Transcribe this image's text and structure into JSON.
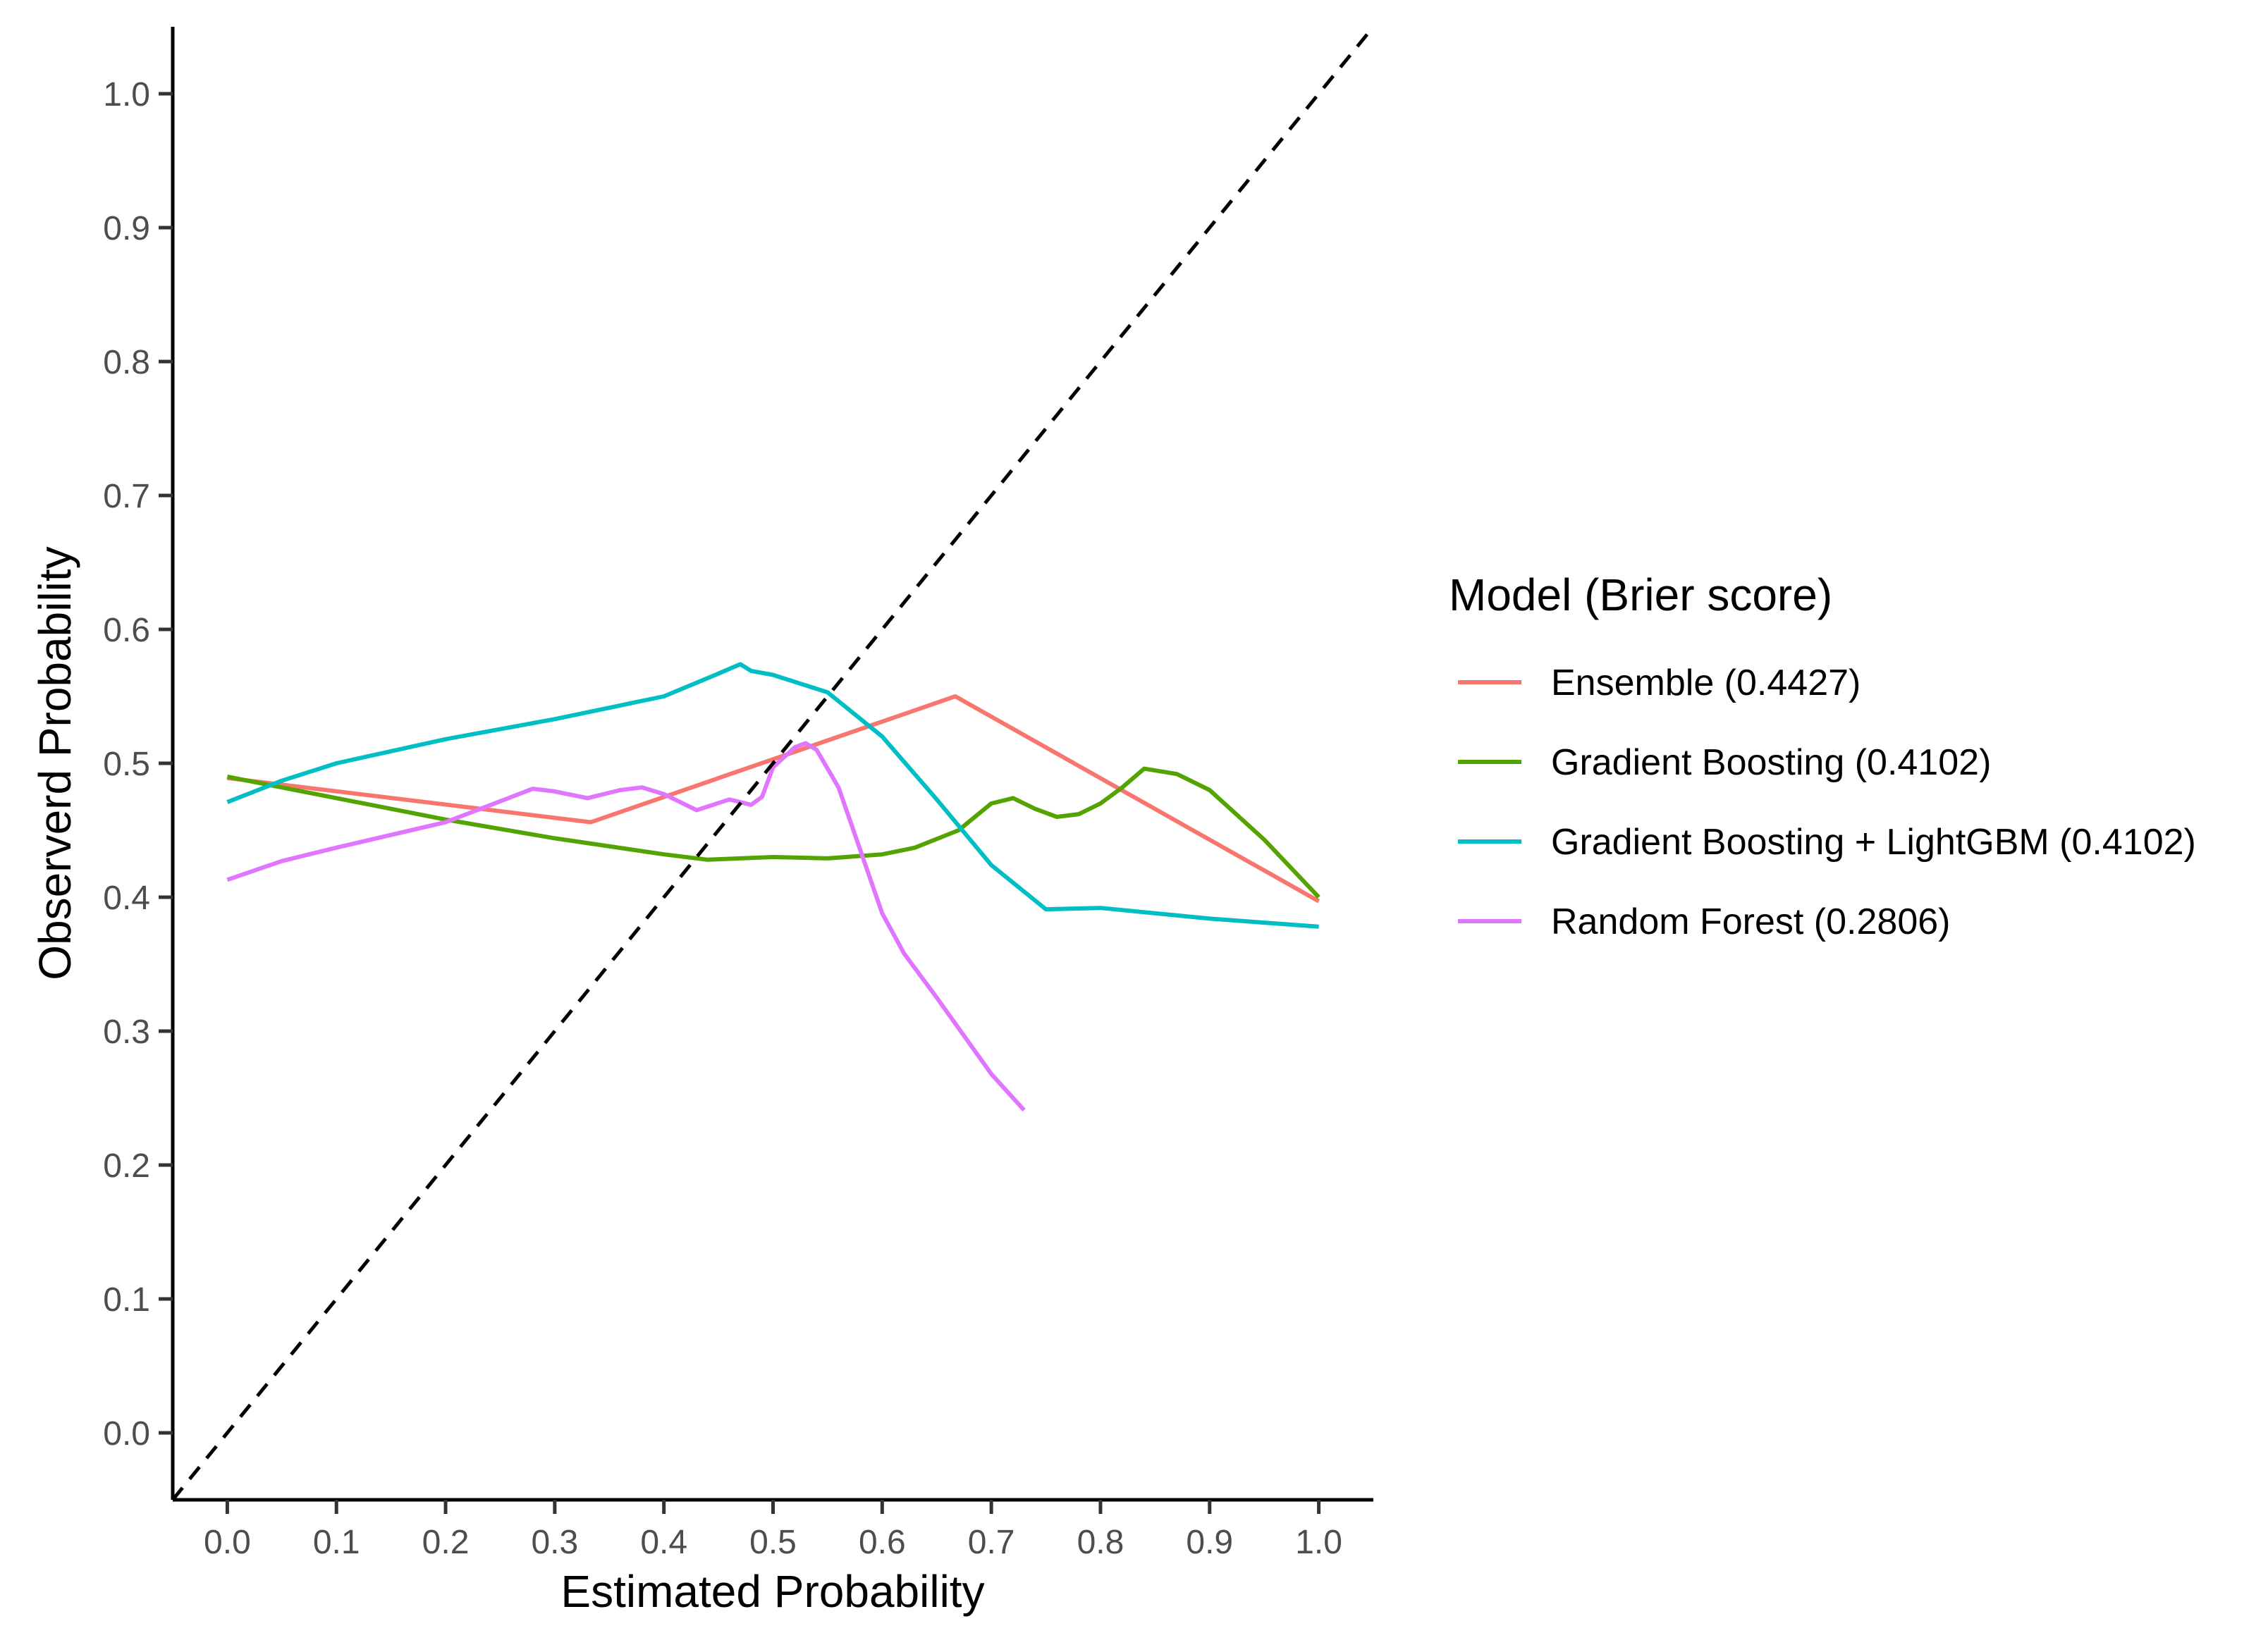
{
  "chart_data": {
    "type": "line",
    "title": "",
    "xlabel": "Estimated Probability",
    "ylabel": "Observerd Probability",
    "xlim": [
      -0.05,
      1.05
    ],
    "ylim": [
      -0.05,
      1.05
    ],
    "xticks": [
      0.0,
      0.1,
      0.2,
      0.3,
      0.4,
      0.5,
      0.6,
      0.7,
      0.8,
      0.9,
      1.0
    ],
    "yticks": [
      0.0,
      0.1,
      0.2,
      0.3,
      0.4,
      0.5,
      0.6,
      0.7,
      0.8,
      0.9,
      1.0
    ],
    "xtick_labels": [
      "0.0",
      "0.1",
      "0.2",
      "0.3",
      "0.4",
      "0.5",
      "0.6",
      "0.7",
      "0.8",
      "0.9",
      "1.0"
    ],
    "ytick_labels": [
      "0.0",
      "0.1",
      "0.2",
      "0.3",
      "0.4",
      "0.5",
      "0.6",
      "0.7",
      "0.8",
      "0.9",
      "1.0"
    ],
    "grid": false,
    "legend_title": "Model (Brier score)",
    "legend_position": "right",
    "reference_line": {
      "style": "dashed",
      "color": "#000000",
      "x": [
        -0.05,
        1.05
      ],
      "y": [
        -0.05,
        1.05
      ]
    },
    "series": [
      {
        "name": "Ensemble (0.4427)",
        "color": "#F8766D",
        "x": [
          0.0,
          0.333,
          0.667,
          1.0
        ],
        "y": [
          0.489,
          0.456,
          0.55,
          0.397
        ]
      },
      {
        "name": "Gradient Boosting (0.4102)",
        "color": "#53A400",
        "x": [
          0.0,
          0.1,
          0.2,
          0.3,
          0.4,
          0.44,
          0.5,
          0.55,
          0.6,
          0.63,
          0.67,
          0.7,
          0.72,
          0.74,
          0.76,
          0.78,
          0.8,
          0.82,
          0.84,
          0.87,
          0.9,
          0.95,
          1.0
        ],
        "y": [
          0.49,
          0.474,
          0.458,
          0.444,
          0.432,
          0.428,
          0.43,
          0.429,
          0.432,
          0.437,
          0.45,
          0.47,
          0.474,
          0.466,
          0.46,
          0.462,
          0.47,
          0.482,
          0.496,
          0.492,
          0.48,
          0.443,
          0.4
        ]
      },
      {
        "name": "Gradient Boosting + LightGBM (0.4102)",
        "color": "#00BFC4",
        "x": [
          0.0,
          0.05,
          0.1,
          0.2,
          0.3,
          0.4,
          0.45,
          0.47,
          0.48,
          0.5,
          0.55,
          0.6,
          0.65,
          0.7,
          0.75,
          0.8,
          0.9,
          1.0
        ],
        "y": [
          0.471,
          0.487,
          0.5,
          0.518,
          0.533,
          0.55,
          0.567,
          0.574,
          0.569,
          0.566,
          0.553,
          0.52,
          0.473,
          0.424,
          0.391,
          0.392,
          0.384,
          0.378
        ]
      },
      {
        "name": "Random Forest (0.2806)",
        "color": "#E076FF",
        "x": [
          0.0,
          0.05,
          0.1,
          0.2,
          0.28,
          0.3,
          0.33,
          0.36,
          0.38,
          0.4,
          0.43,
          0.46,
          0.48,
          0.49,
          0.5,
          0.52,
          0.53,
          0.54,
          0.56,
          0.58,
          0.6,
          0.62,
          0.65,
          0.7,
          0.73
        ],
        "y": [
          0.413,
          0.427,
          0.437,
          0.456,
          0.481,
          0.479,
          0.474,
          0.48,
          0.482,
          0.477,
          0.465,
          0.473,
          0.469,
          0.475,
          0.497,
          0.512,
          0.515,
          0.51,
          0.482,
          0.435,
          0.388,
          0.358,
          0.325,
          0.268,
          0.241
        ]
      }
    ]
  }
}
